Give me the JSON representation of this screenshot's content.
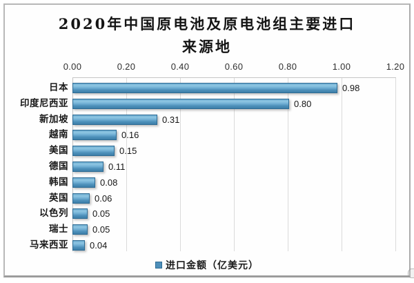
{
  "title": {
    "line1": "2020年中国原电池及原电池组主要进口",
    "line2": "来源地"
  },
  "chart_data": {
    "type": "bar",
    "orientation": "horizontal",
    "title": "2020年中国原电池及原电池组主要进口来源地",
    "categories": [
      "日本",
      "印度尼西亚",
      "新加坡",
      "越南",
      "美国",
      "德国",
      "韩国",
      "英国",
      "以色列",
      "瑞士",
      "马来西亚"
    ],
    "values": [
      0.98,
      0.8,
      0.31,
      0.16,
      0.15,
      0.11,
      0.08,
      0.06,
      0.05,
      0.05,
      0.04
    ],
    "value_labels": [
      "0.98",
      "0.80",
      "0.31",
      "0.16",
      "0.15",
      "0.11",
      "0.08",
      "0.06",
      "0.05",
      "0.05",
      "0.04"
    ],
    "x_ticks": [
      "0.00",
      "0.20",
      "0.40",
      "0.60",
      "0.80",
      "1.00",
      "1.20"
    ],
    "x_tick_values": [
      0.0,
      0.2,
      0.4,
      0.6,
      0.8,
      1.0,
      1.2
    ],
    "xlim": [
      0,
      1.2
    ],
    "grid": "vertical",
    "legend": {
      "label": "进口金额（亿美元）",
      "position": "bottom"
    },
    "bar_color": "#4e8fba",
    "bar_border_color": "#2d6b94"
  }
}
